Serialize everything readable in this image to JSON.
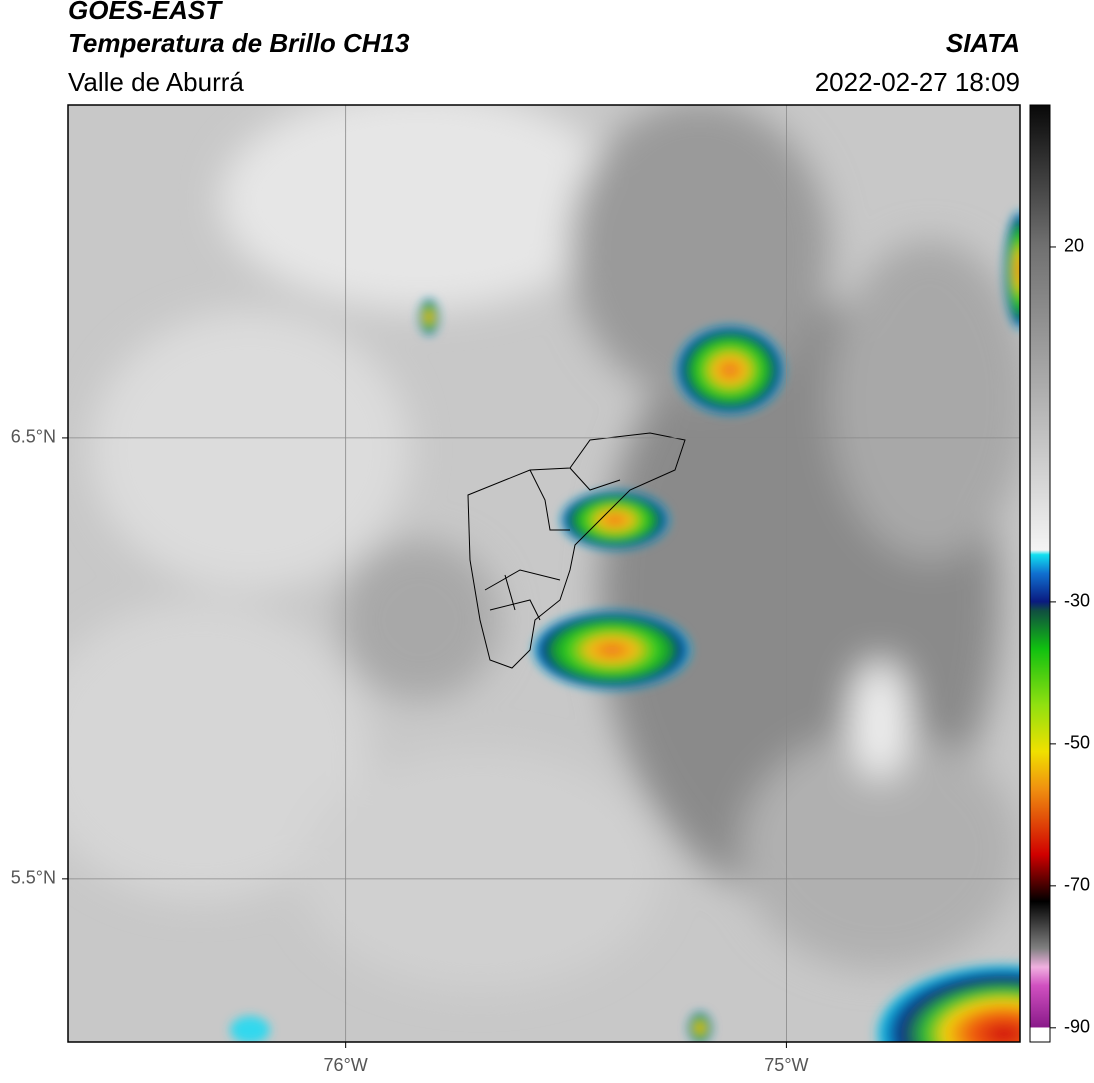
{
  "header": {
    "title": "GOES-EAST",
    "subtitle": "Temperatura de Brillo CH13",
    "source": "SIATA",
    "region": "Valle de Aburrá",
    "datetime": "2022-02-27 18:09"
  },
  "map": {
    "lonlim": [
      -76.63,
      -74.47
    ],
    "latlim": [
      5.13,
      7.255
    ],
    "lonticks": [
      {
        "value": -76,
        "label": "76°W"
      },
      {
        "value": -75,
        "label": "75°W"
      }
    ],
    "latticks": [
      {
        "value": 6.5,
        "label": "6.5°N"
      },
      {
        "value": 5.5,
        "label": "5.5°N"
      }
    ],
    "grid": true
  },
  "colorbar": {
    "lim": [
      -92,
      40
    ],
    "ticks": [
      20,
      -30,
      -50,
      -70,
      -90
    ]
  }
}
